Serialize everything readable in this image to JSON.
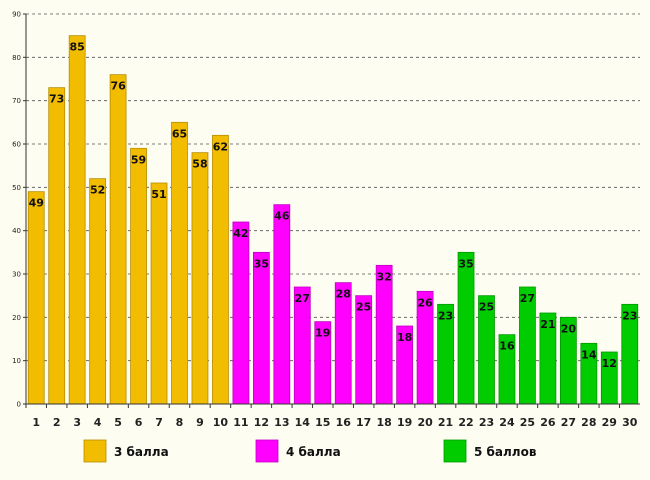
{
  "chart_data": {
    "type": "bar",
    "title": "",
    "xlabel": "",
    "ylabel": "",
    "ylim": [
      0,
      90
    ],
    "yticks": [
      0,
      10,
      20,
      30,
      40,
      50,
      60,
      70,
      80,
      90
    ],
    "grid": true,
    "legend_position": "bottom",
    "categories": [
      "1",
      "2",
      "3",
      "4",
      "5",
      "6",
      "7",
      "8",
      "9",
      "10",
      "11",
      "12",
      "13",
      "14",
      "15",
      "16",
      "17",
      "18",
      "19",
      "20",
      "21",
      "22",
      "23",
      "24",
      "25",
      "26",
      "27",
      "28",
      "29",
      "30"
    ],
    "values": [
      49,
      73,
      85,
      52,
      76,
      59,
      51,
      65,
      58,
      62,
      42,
      35,
      46,
      27,
      19,
      28,
      25,
      32,
      18,
      26,
      23,
      35,
      25,
      16,
      27,
      21,
      20,
      14,
      12,
      23
    ],
    "series": [
      {
        "name": "3 балла",
        "color": "#f2bc00",
        "start_index": 0,
        "end_index": 9
      },
      {
        "name": "4 балла",
        "color": "#ff00ff",
        "start_index": 10,
        "end_index": 19
      },
      {
        "name": "5 баллов",
        "color": "#00cc00",
        "start_index": 20,
        "end_index": 29
      }
    ]
  }
}
